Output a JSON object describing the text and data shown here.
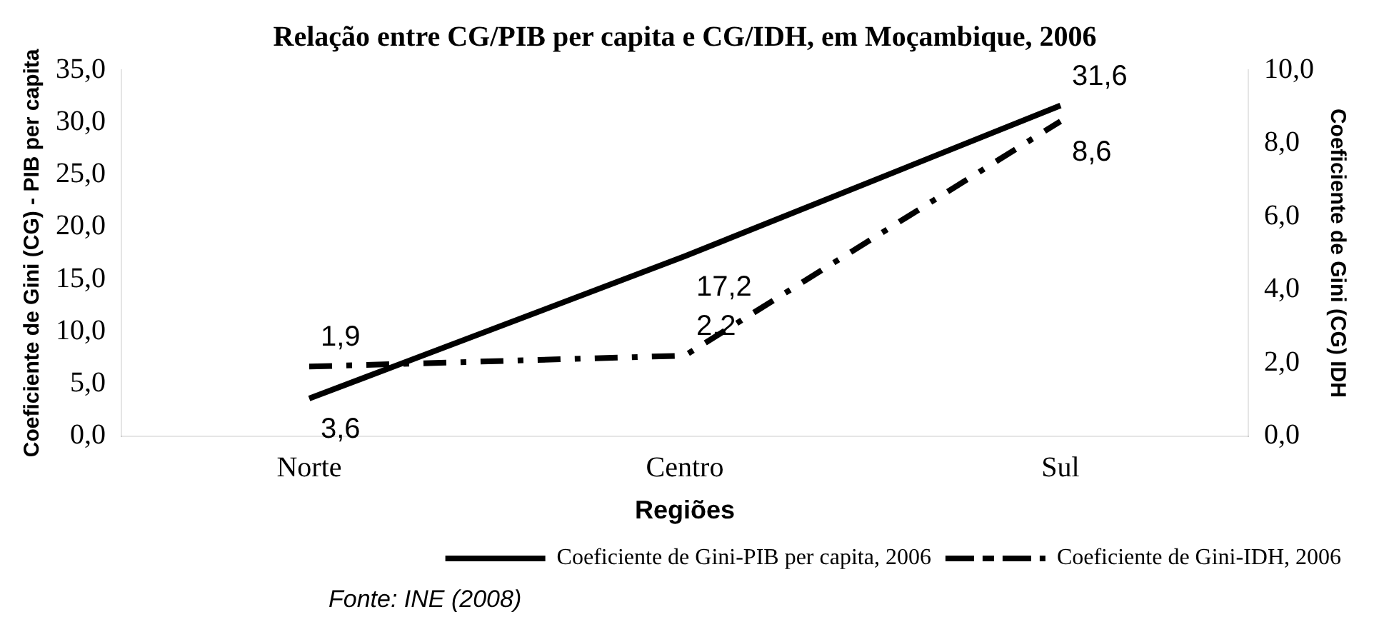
{
  "chart_data": {
    "type": "line",
    "title": "Relação entre CG/PIB per capita e CG/IDH, em Moçambique, 2006",
    "xlabel": "Regiões",
    "ylabel": "Coeficiente de Gini (CG) - PIB per capita",
    "y2label": "Coeficiente de Gini (CG) IDH",
    "categories": [
      "Norte",
      "Centro",
      "Sul"
    ],
    "series": [
      {
        "name": "Coeficiente de Gini-PIB per capita, 2006",
        "color": "#000000",
        "values": [
          3.6,
          17.2,
          31.6
        ],
        "value_labels": [
          "3,6",
          "17,2",
          "31,6"
        ],
        "line_style": "solid"
      },
      {
        "name": "Coeficiente de Gini-IDH, 2006",
        "color": "#000000",
        "values": [
          1.9,
          2.2,
          8.6
        ],
        "value_labels": [
          "1,9",
          "2,2",
          "8,6"
        ],
        "axis": "y2",
        "line_style": "dashed"
      }
    ],
    "ylim": [
      0,
      35
    ],
    "yticks": [
      {
        "value": 0,
        "label": "0,0"
      },
      {
        "value": 5,
        "label": "5,0"
      },
      {
        "value": 10,
        "label": "10,0"
      },
      {
        "value": 15,
        "label": "15,0"
      },
      {
        "value": 20,
        "label": "20,0"
      },
      {
        "value": 25,
        "label": "25,0"
      },
      {
        "value": 30,
        "label": "30,0"
      },
      {
        "value": 35,
        "label": "35,0"
      }
    ],
    "y2lim": [
      0,
      10
    ],
    "y2ticks": [
      {
        "value": 0,
        "label": "0,0"
      },
      {
        "value": 2,
        "label": "2,0"
      },
      {
        "value": 4,
        "label": "4,0"
      },
      {
        "value": 6,
        "label": "6,0"
      },
      {
        "value": 8,
        "label": "8,0"
      },
      {
        "value": 10,
        "label": "10,0"
      }
    ],
    "legend": "bottom right",
    "grid": false,
    "marker": "none",
    "annotations": [
      "Fonte: INE (2008)"
    ]
  }
}
